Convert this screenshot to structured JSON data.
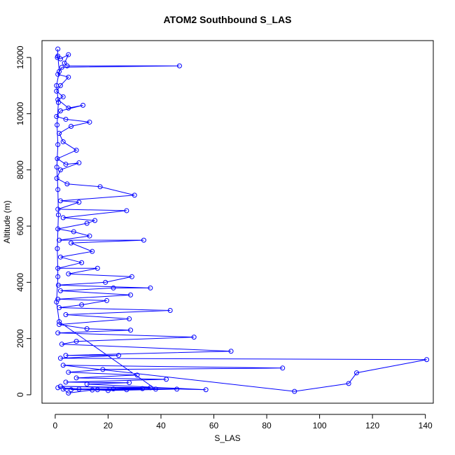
{
  "chart_data": {
    "type": "line",
    "title": "ATOM2 Southbound S_LAS",
    "xlabel": "S_LAS",
    "ylabel": "Altitude (m)",
    "xlim": [
      -5,
      143
    ],
    "ylim": [
      -300,
      12600
    ],
    "x_ticks": [
      0,
      20,
      40,
      60,
      80,
      100,
      120,
      140
    ],
    "y_ticks": [
      0,
      2000,
      4000,
      6000,
      8000,
      10000,
      12000
    ],
    "grid": false,
    "legend": "none",
    "markers": "open-circle",
    "colors": {
      "series": "#0000ff",
      "axis": "#000000"
    },
    "series": [
      {
        "name": "",
        "points": [
          [
            1,
            12300
          ],
          [
            0.8,
            12000
          ],
          [
            2,
            11950
          ],
          [
            5,
            12100
          ],
          [
            3.5,
            11800
          ],
          [
            4.5,
            11700
          ],
          [
            47,
            11700
          ],
          [
            2.5,
            11650
          ],
          [
            1,
            11400
          ],
          [
            5,
            11300
          ],
          [
            2,
            11000
          ],
          [
            0.5,
            10800
          ],
          [
            3,
            10600
          ],
          [
            1,
            10500
          ],
          [
            5,
            10200
          ],
          [
            10.5,
            10300
          ],
          [
            2,
            10100
          ],
          [
            0.5,
            9900
          ],
          [
            4,
            9800
          ],
          [
            13,
            9700
          ],
          [
            6,
            9550
          ],
          [
            1.5,
            9300
          ],
          [
            3,
            9000
          ],
          [
            8,
            8700
          ],
          [
            0.8,
            8400
          ],
          [
            4,
            8200
          ],
          [
            9,
            8250
          ],
          [
            2,
            8000
          ],
          [
            0.6,
            7700
          ],
          [
            4.5,
            7500
          ],
          [
            17,
            7400
          ],
          [
            30,
            7100
          ],
          [
            2,
            6900
          ],
          [
            9,
            6850
          ],
          [
            1,
            6600
          ],
          [
            27,
            6550
          ],
          [
            3,
            6300
          ],
          [
            15,
            6200
          ],
          [
            12,
            6100
          ],
          [
            1,
            5900
          ],
          [
            7,
            5800
          ],
          [
            13,
            5650
          ],
          [
            1.5,
            5500
          ],
          [
            33.5,
            5500
          ],
          [
            6,
            5400
          ],
          [
            14,
            5100
          ],
          [
            2,
            4900
          ],
          [
            10,
            4700
          ],
          [
            1,
            4500
          ],
          [
            16,
            4500
          ],
          [
            5,
            4300
          ],
          [
            29,
            4200
          ],
          [
            19,
            4000
          ],
          [
            1.2,
            3900
          ],
          [
            36,
            3800
          ],
          [
            22,
            3800
          ],
          [
            2,
            3700
          ],
          [
            28.5,
            3550
          ],
          [
            1,
            3400
          ],
          [
            19.5,
            3350
          ],
          [
            10,
            3200
          ],
          [
            1.5,
            3100
          ],
          [
            43.5,
            3000
          ],
          [
            4,
            2850
          ],
          [
            28,
            2700
          ],
          [
            1.5,
            2500
          ],
          [
            12,
            2350
          ],
          [
            28.5,
            2300
          ],
          [
            1,
            2200
          ],
          [
            52.5,
            2050
          ],
          [
            8,
            1900
          ],
          [
            2.5,
            1800
          ],
          [
            66.5,
            1550
          ],
          [
            4,
            1400
          ],
          [
            24,
            1400
          ],
          [
            2,
            1300
          ],
          [
            140.5,
            1250
          ],
          [
            114,
            780
          ],
          [
            111,
            400
          ],
          [
            90.5,
            120
          ],
          [
            3,
            1050
          ],
          [
            86,
            950
          ],
          [
            18,
            900
          ],
          [
            5,
            800
          ],
          [
            31,
            700
          ],
          [
            8,
            600
          ],
          [
            42,
            550
          ],
          [
            4,
            450
          ],
          [
            28,
            430
          ],
          [
            12,
            380
          ],
          [
            57,
            180
          ],
          [
            2,
            300
          ],
          [
            36,
            250
          ],
          [
            6,
            180
          ],
          [
            46,
            200
          ],
          [
            20,
            150
          ],
          [
            1,
            250
          ],
          [
            9,
            200
          ],
          [
            27,
            180
          ],
          [
            14,
            170
          ],
          [
            5,
            60
          ],
          [
            3,
            200
          ],
          [
            33,
            220
          ],
          [
            22,
            210
          ],
          [
            16,
            180
          ],
          [
            38,
            200
          ],
          [
            1.5,
            2600
          ],
          [
            0.5,
            3300
          ],
          [
            1,
            4200
          ],
          [
            0.8,
            5200
          ],
          [
            1.2,
            6400
          ],
          [
            1,
            7300
          ],
          [
            0.6,
            8100
          ],
          [
            1,
            8900
          ],
          [
            0.7,
            9600
          ],
          [
            1.2,
            10400
          ],
          [
            0.5,
            11000
          ],
          [
            1.5,
            11500
          ],
          [
            1,
            12050
          ]
        ]
      }
    ]
  }
}
